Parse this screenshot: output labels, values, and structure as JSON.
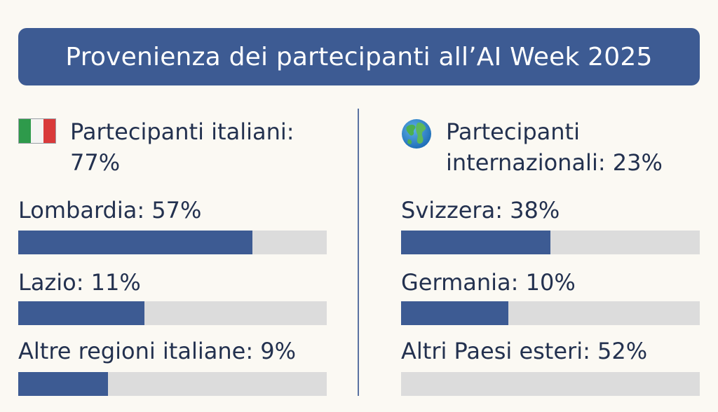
{
  "title": "Provenienza dei partecipanti all’AI Week 2025",
  "colors": {
    "primary": "#3d5b93",
    "track": "#dcdcdc",
    "background": "#fbf9f3"
  },
  "chart_data": [
    {
      "type": "bar",
      "orientation": "horizontal",
      "heading": "Partecipanti italiani: 77%",
      "icon": "italy-flag-icon",
      "categories": [
        "Lombardia",
        "Lazio",
        "Altre regioni italiane"
      ],
      "labels": [
        "Lombardia: 57%",
        "Lazio: 11%",
        "Altre regioni italiane: 9%"
      ],
      "values": [
        57,
        11,
        9
      ],
      "fill_fraction": [
        0.76,
        0.41,
        0.29
      ],
      "ylim": [
        0,
        100
      ]
    },
    {
      "type": "bar",
      "orientation": "horizontal",
      "heading": "Partecipanti internazionali: 23%",
      "icon": "globe-icon",
      "categories": [
        "Svizzera",
        "Germania",
        "Altri Paesi esteri"
      ],
      "labels": [
        "Svizzera: 38%",
        "Germania: 10%",
        "Altri Paesi esteri: 52%"
      ],
      "values": [
        38,
        10,
        52
      ],
      "fill_fraction": [
        0.5,
        0.36,
        0.0
      ],
      "ylim": [
        0,
        100
      ]
    }
  ]
}
